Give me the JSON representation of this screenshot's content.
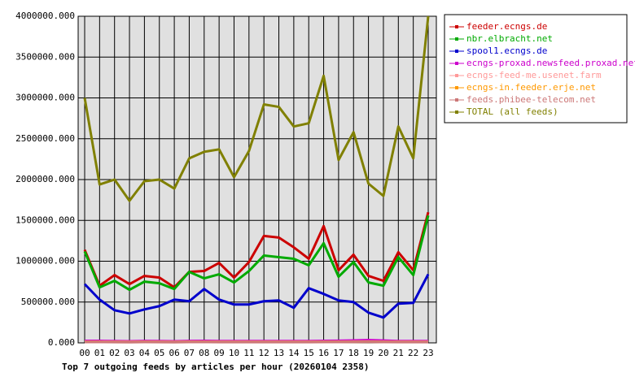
{
  "chart_data": {
    "type": "line",
    "title": "Top 7 outgoing feeds by articles per hour (20260104 2358)",
    "categories": [
      "00",
      "01",
      "02",
      "03",
      "04",
      "05",
      "06",
      "07",
      "08",
      "09",
      "10",
      "11",
      "12",
      "13",
      "14",
      "15",
      "16",
      "17",
      "18",
      "19",
      "20",
      "21",
      "22",
      "23"
    ],
    "ylim": [
      0,
      4000000
    ],
    "yticks": [
      {
        "value": 0,
        "label": "0.000"
      },
      {
        "value": 500000,
        "label": "500000.000"
      },
      {
        "value": 1000000,
        "label": "1000000.000"
      },
      {
        "value": 1500000,
        "label": "1500000.000"
      },
      {
        "value": 2000000,
        "label": "2000000.000"
      },
      {
        "value": 2500000,
        "label": "2500000.000"
      },
      {
        "value": 3000000,
        "label": "3000000.000"
      },
      {
        "value": 3500000,
        "label": "3500000.000"
      },
      {
        "value": 4000000,
        "label": "4000000.000"
      }
    ],
    "grid": true,
    "legend": "right",
    "series": [
      {
        "name": "feeder.ecngs.de",
        "color": "#cc0000",
        "values": [
          1140000,
          700000,
          830000,
          720000,
          820000,
          800000,
          680000,
          870000,
          880000,
          980000,
          800000,
          990000,
          1310000,
          1290000,
          1170000,
          1030000,
          1430000,
          890000,
          1080000,
          820000,
          760000,
          1110000,
          890000,
          1600000
        ]
      },
      {
        "name": "nbr.elbracht.net",
        "color": "#00aa00",
        "values": [
          1120000,
          680000,
          760000,
          650000,
          750000,
          730000,
          660000,
          870000,
          790000,
          840000,
          740000,
          880000,
          1070000,
          1050000,
          1030000,
          950000,
          1220000,
          810000,
          990000,
          740000,
          700000,
          1050000,
          830000,
          1560000
        ]
      },
      {
        "name": "spool1.ecngs.de",
        "color": "#0000cc",
        "values": [
          720000,
          530000,
          400000,
          360000,
          410000,
          450000,
          530000,
          510000,
          660000,
          530000,
          470000,
          470000,
          510000,
          520000,
          430000,
          670000,
          600000,
          520000,
          500000,
          370000,
          310000,
          480000,
          490000,
          840000
        ]
      },
      {
        "name": "ecngs-proxad.newsfeed.proxad.net",
        "color": "#cc00cc",
        "values": [
          25000,
          25000,
          22000,
          20000,
          24000,
          22000,
          20000,
          24000,
          25000,
          23000,
          22000,
          22000,
          22000,
          22000,
          22000,
          22000,
          25000,
          26000,
          30000,
          35000,
          28000,
          22000,
          22000,
          22000
        ]
      },
      {
        "name": "ecngs-feed-me.usenet.farm",
        "color": "#ff9999",
        "values": [
          15000,
          15000,
          14000,
          13000,
          15000,
          14000,
          13000,
          15000,
          15000,
          14000,
          14000,
          14000,
          14000,
          14000,
          14000,
          14000,
          15000,
          15000,
          16000,
          17000,
          15000,
          14000,
          14000,
          14000
        ]
      },
      {
        "name": "ecngs-in.feeder.erje.net",
        "color": "#ff9900",
        "values": [
          12000,
          12000,
          11000,
          10000,
          12000,
          11000,
          10000,
          12000,
          12000,
          11000,
          11000,
          11000,
          11000,
          11000,
          11000,
          11000,
          12000,
          12000,
          13000,
          14000,
          12000,
          11000,
          11000,
          11000
        ]
      },
      {
        "name": "feeds.phibee-telecom.net",
        "color": "#cc7777",
        "values": [
          10000,
          10000,
          9000,
          8000,
          10000,
          9000,
          8000,
          10000,
          10000,
          9000,
          9000,
          9000,
          9000,
          9000,
          9000,
          9000,
          10000,
          10000,
          11000,
          12000,
          10000,
          9000,
          9000,
          9000
        ]
      },
      {
        "name": "TOTAL (all feeds)",
        "color": "#808000",
        "values": [
          3000000,
          1940000,
          2000000,
          1740000,
          1980000,
          2000000,
          1890000,
          2260000,
          2340000,
          2370000,
          2030000,
          2350000,
          2920000,
          2890000,
          2650000,
          2690000,
          3270000,
          2240000,
          2580000,
          1950000,
          1800000,
          2650000,
          2260000,
          4000000
        ]
      }
    ]
  }
}
